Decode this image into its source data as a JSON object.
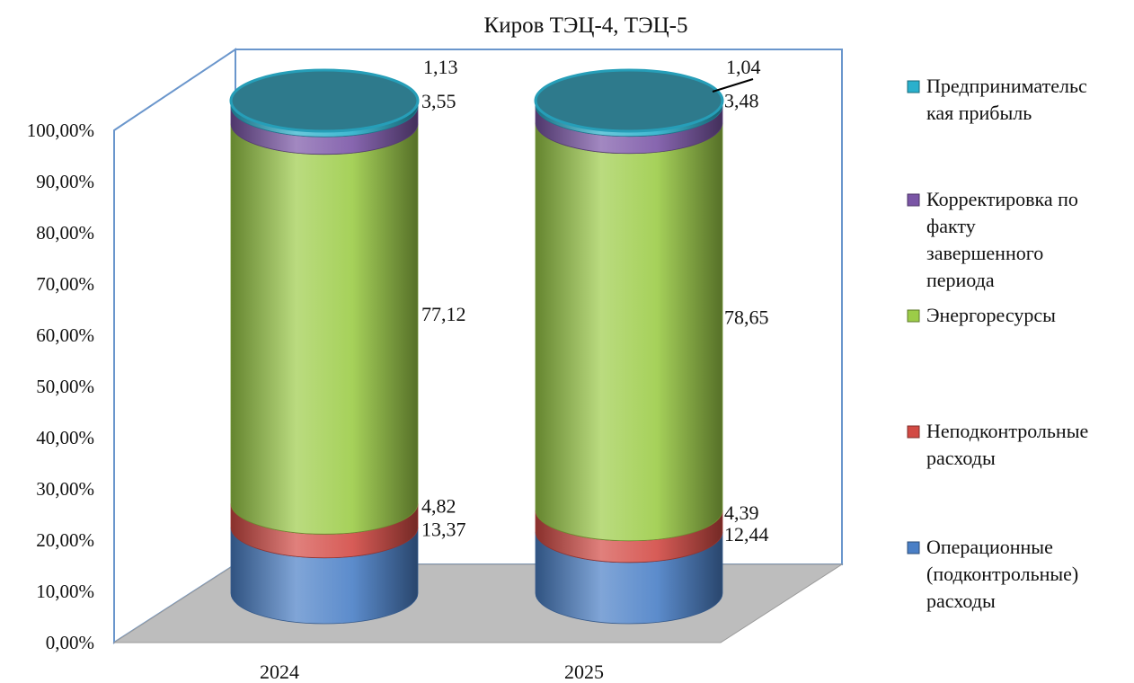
{
  "chart_data": {
    "type": "bar",
    "subtype": "stacked-100-percent-cylinder-3d",
    "title": "Киров ТЭЦ-4, ТЭЦ-5",
    "categories": [
      "2024",
      "2025"
    ],
    "series": [
      {
        "name": "Операционные (подконтрольные) расходы",
        "legend_lines": [
          "Операционные",
          "(подконтрольные)",
          "расходы"
        ],
        "values": [
          13.37,
          12.44
        ],
        "labels": [
          "13,37",
          "12,44"
        ],
        "color": "#4a7fc6"
      },
      {
        "name": "Неподконтрольные расходы",
        "legend_lines": [
          "Неподконтрольные",
          "расходы"
        ],
        "values": [
          4.82,
          4.39
        ],
        "labels": [
          "4,82",
          "4,39"
        ],
        "color": "#d24a44"
      },
      {
        "name": "Энергоресурсы",
        "legend_lines": [
          "Энергоресурсы"
        ],
        "values": [
          77.12,
          78.65
        ],
        "labels": [
          "77,12",
          "78,65"
        ],
        "color": "#9ccc48"
      },
      {
        "name": "Корректировка по факту завершенного периода",
        "legend_lines": [
          "Корректировка по",
          "факту",
          "завершенного",
          "периода"
        ],
        "values": [
          3.55,
          3.48
        ],
        "labels": [
          "3,55",
          "3,48"
        ],
        "color": "#7a55a6"
      },
      {
        "name": "Предпринимательская прибыль",
        "legend_lines": [
          "Предпринимательс",
          "кая прибыль"
        ],
        "values": [
          1.13,
          1.04
        ],
        "labels": [
          "1,13",
          "1,04"
        ],
        "color": "#2ab0cc"
      }
    ],
    "y_ticks": [
      "0,00%",
      "10,00%",
      "20,00%",
      "30,00%",
      "40,00%",
      "50,00%",
      "60,00%",
      "70,00%",
      "80,00%",
      "90,00%",
      "100,00%"
    ],
    "ylim": [
      0,
      100
    ],
    "xlabel": "",
    "ylabel": "",
    "legend": "right",
    "grid": false,
    "wall_color": "#6a96cc",
    "floor_color": "#bdbdbd",
    "top_cap_color": "#2e7a8c"
  }
}
